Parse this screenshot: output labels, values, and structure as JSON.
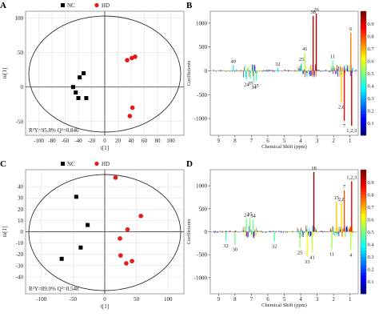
{
  "chart_data": [
    {
      "type": "scatter",
      "panel": "A",
      "legend": {
        "items": [
          {
            "name": "NC",
            "color": "#000000",
            "marker": "square"
          },
          {
            "name": "HD",
            "color": "#e41a1c",
            "marker": "circle"
          }
        ],
        "placement": "top"
      },
      "xlabel": "t[1]",
      "ylabel": "to[1]",
      "xlim": [
        -120,
        120
      ],
      "ylim": [
        -70,
        110
      ],
      "xticks": [
        -100,
        -80,
        -60,
        -40,
        -20,
        0,
        20,
        40,
        60,
        80,
        100
      ],
      "yticks": [
        -50,
        0,
        50,
        100
      ],
      "annotation": "R²Y=95.8%  Q²=0.846",
      "series": [
        {
          "name": "NC",
          "color": "#000000",
          "marker": "square",
          "points": [
            [
              -48,
              0
            ],
            [
              -44,
              -8
            ],
            [
              -40,
              -16
            ],
            [
              -38,
              14
            ],
            [
              -32,
              20
            ],
            [
              -28,
              -16
            ]
          ]
        },
        {
          "name": "HD",
          "color": "#e41a1c",
          "marker": "circle",
          "points": [
            [
              34,
              39
            ],
            [
              41,
              42
            ],
            [
              46,
              44
            ],
            [
              42,
              -30
            ],
            [
              38,
              -42
            ]
          ]
        }
      ]
    },
    {
      "type": "line",
      "panel": "B",
      "xlabel": "Chemical Shift (ppm)",
      "ylabel": "Coefficients",
      "xlim": [
        9.5,
        0.5
      ],
      "ylim": [
        -1350,
        1250
      ],
      "xticks": [
        9,
        8,
        7,
        6,
        5,
        4,
        3,
        2,
        1
      ],
      "yticks": [
        -1000,
        -500,
        0,
        500,
        1000
      ],
      "colorbar": {
        "ticks": [
          "0.1",
          "0.2",
          "0.3",
          "0.4",
          "0.5",
          "0.6",
          "0.7",
          "0.8",
          "0.9"
        ]
      },
      "peaks": [
        {
          "x": 8.1,
          "value": 120,
          "label": "40"
        },
        {
          "x": 7.3,
          "value": -180,
          "label": "24"
        },
        {
          "x": 7.05,
          "value": -160,
          "label": "35"
        },
        {
          "x": 6.85,
          "value": -240,
          "label": "34"
        },
        {
          "x": 6.7,
          "value": -210,
          "label": "35"
        },
        {
          "x": 5.4,
          "value": 60,
          "label": "32"
        },
        {
          "x": 3.95,
          "value": 160,
          "label": "25"
        },
        {
          "x": 3.75,
          "value": 380,
          "label": "41"
        },
        {
          "x": 3.24,
          "value": 1150,
          "label": "38"
        },
        {
          "x": 3.05,
          "value": 1200,
          "label": "26"
        },
        {
          "x": 2.05,
          "value": 220,
          "label": "11"
        },
        {
          "x": 1.52,
          "value": -650,
          "label": "2,8"
        },
        {
          "x": 1.35,
          "value": -1050,
          "label": "7"
        },
        {
          "x": 0.95,
          "value": 800,
          "label": "6"
        },
        {
          "x": 0.9,
          "value": -1150,
          "label": "1,2,3"
        }
      ]
    },
    {
      "type": "scatter",
      "panel": "C",
      "legend": {
        "items": [
          {
            "name": "NC",
            "color": "#000000",
            "marker": "square"
          },
          {
            "name": "HD",
            "color": "#e41a1c",
            "marker": "circle"
          }
        ],
        "placement": "top"
      },
      "xlabel": "t[1]",
      "ylabel": "to[1]",
      "xlim": [
        -125,
        125
      ],
      "ylim": [
        -55,
        55
      ],
      "xticks": [
        -100,
        -50,
        0,
        50,
        100
      ],
      "yticks": [
        -40,
        -30,
        -20,
        -10,
        0,
        10,
        20,
        30,
        40
      ],
      "annotation": "R²Y=89.0%  Q²=0.548",
      "series": [
        {
          "name": "NC",
          "color": "#000000",
          "marker": "square",
          "points": [
            [
              -45,
              31
            ],
            [
              -38,
              -14
            ],
            [
              -27,
              6
            ],
            [
              -68,
              -24
            ]
          ]
        },
        {
          "name": "HD",
          "color": "#e41a1c",
          "marker": "circle",
          "points": [
            [
              17,
              48
            ],
            [
              57,
              14
            ],
            [
              36,
              2
            ],
            [
              24,
              -6
            ],
            [
              25,
              -21
            ],
            [
              43,
              -26
            ],
            [
              34,
              -28
            ]
          ]
        }
      ]
    },
    {
      "type": "line",
      "panel": "D",
      "xlabel": "Chemical Shift (ppm)",
      "ylabel": "Coefficients",
      "xlim": [
        9.5,
        0.5
      ],
      "ylim": [
        -1350,
        1350
      ],
      "xticks": [
        9,
        8,
        7,
        6,
        5,
        4,
        3,
        2,
        1
      ],
      "yticks": [
        -1000,
        -500,
        0,
        500,
        1000
      ],
      "colorbar": {
        "ticks": [
          "0.1",
          "0.2",
          "0.3",
          "0.4",
          "0.5",
          "0.6",
          "0.7",
          "0.8",
          "0.9"
        ]
      },
      "peaks": [
        {
          "x": 8.0,
          "value": -280,
          "label": "30"
        },
        {
          "x": 8.55,
          "value": -200,
          "label": "32"
        },
        {
          "x": 7.3,
          "value": 280,
          "label": "24"
        },
        {
          "x": 7.1,
          "value": 300,
          "label": "35"
        },
        {
          "x": 6.9,
          "value": 260,
          "label": "34"
        },
        {
          "x": 5.6,
          "value": -210,
          "label": "32"
        },
        {
          "x": 4.05,
          "value": -350,
          "label": "25"
        },
        {
          "x": 3.6,
          "value": -550,
          "label": "33"
        },
        {
          "x": 3.3,
          "value": -450,
          "label": "41"
        },
        {
          "x": 3.2,
          "value": 1300,
          "label": "18"
        },
        {
          "x": 2.1,
          "value": -380,
          "label": "11"
        },
        {
          "x": 1.82,
          "value": 650,
          "label": "15"
        },
        {
          "x": 1.52,
          "value": 620,
          "label": "2,8"
        },
        {
          "x": 1.35,
          "value": 900,
          "label": "7"
        },
        {
          "x": 0.9,
          "value": 1100,
          "label": "1,2,3"
        },
        {
          "x": 0.95,
          "value": -400,
          "label": "4"
        }
      ]
    }
  ]
}
